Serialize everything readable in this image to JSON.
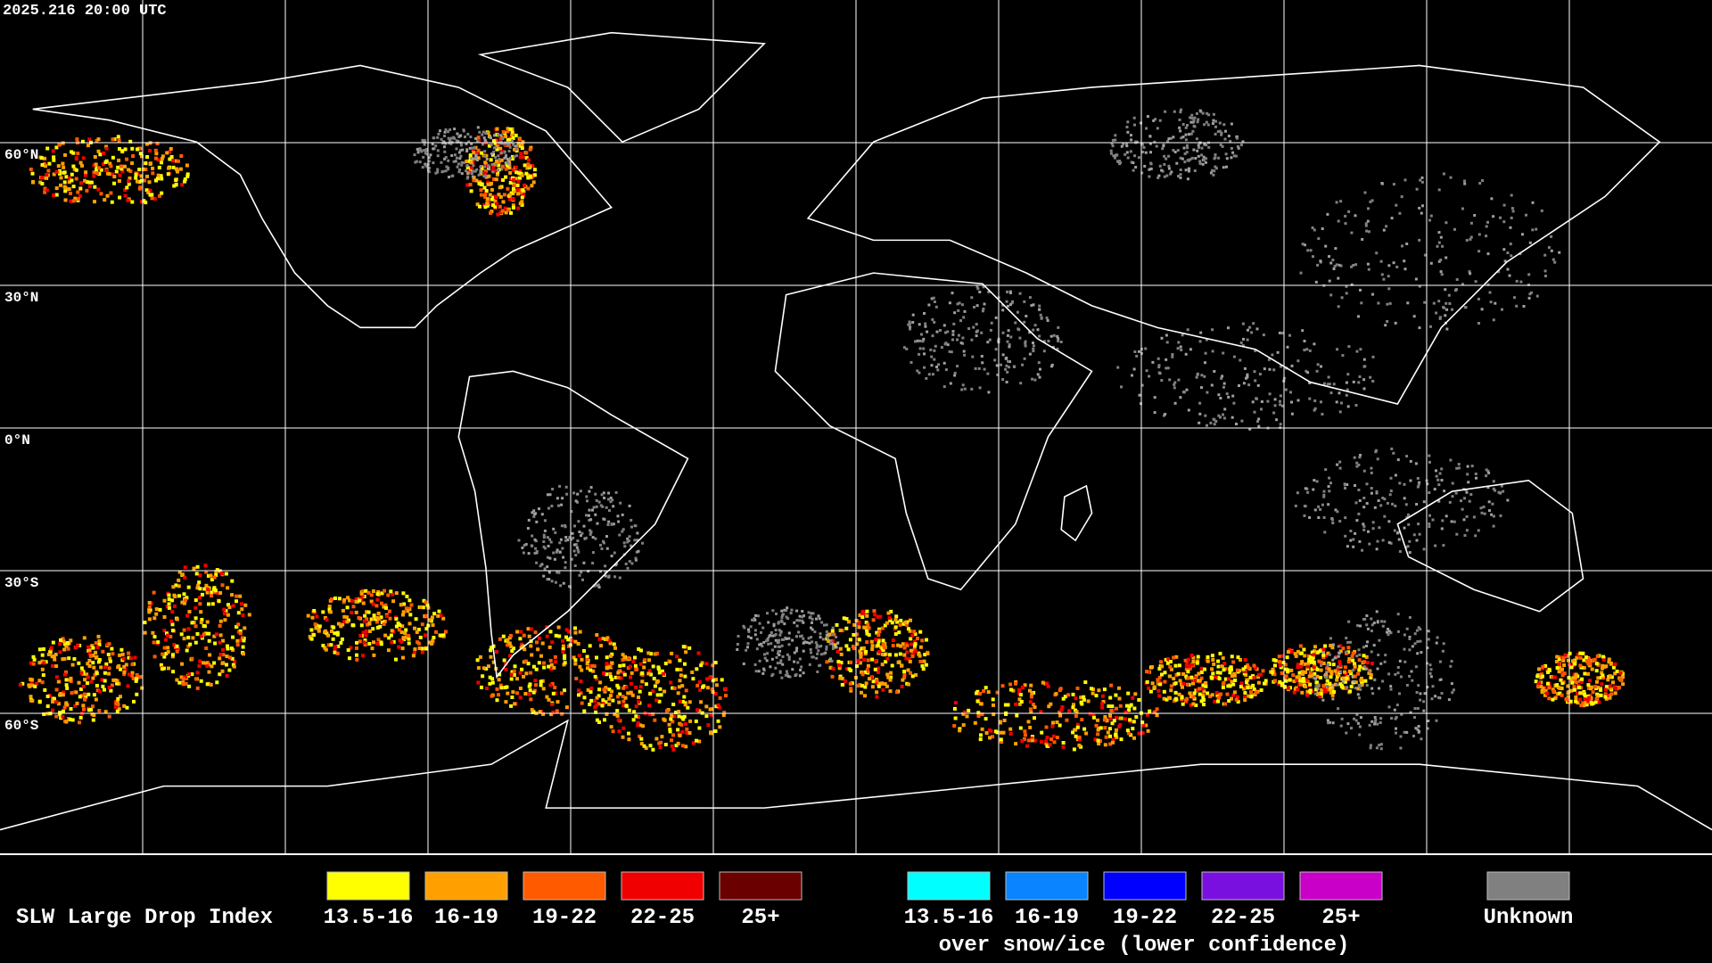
{
  "header": {
    "timestamp": "2025.216 20:00 UTC"
  },
  "grid": {
    "lat_labels": [
      "60°N",
      "30°N",
      "0°N",
      "30°S",
      "60°S"
    ]
  },
  "legend": {
    "title": "SLW Large Drop Index",
    "groups": [
      {
        "items": [
          {
            "label": "13.5-16",
            "color": "#ffff00"
          },
          {
            "label": "16-19",
            "color": "#ffa000"
          },
          {
            "label": "19-22",
            "color": "#ff5a00"
          },
          {
            "label": "22-25",
            "color": "#f00000"
          },
          {
            "label": "25+",
            "color": "#6a0000"
          }
        ]
      },
      {
        "items": [
          {
            "label": "13.5-16",
            "color": "#00ffff"
          },
          {
            "label": "16-19",
            "color": "#0a84ff"
          },
          {
            "label": "19-22",
            "color": "#0000ff"
          },
          {
            "label": "22-25",
            "color": "#7a10e0"
          },
          {
            "label": "25+",
            "color": "#c800c8"
          }
        ],
        "note": "over snow/ice (lower confidence)"
      }
    ],
    "unknown": {
      "label": "Unknown",
      "color": "#808080"
    }
  }
}
